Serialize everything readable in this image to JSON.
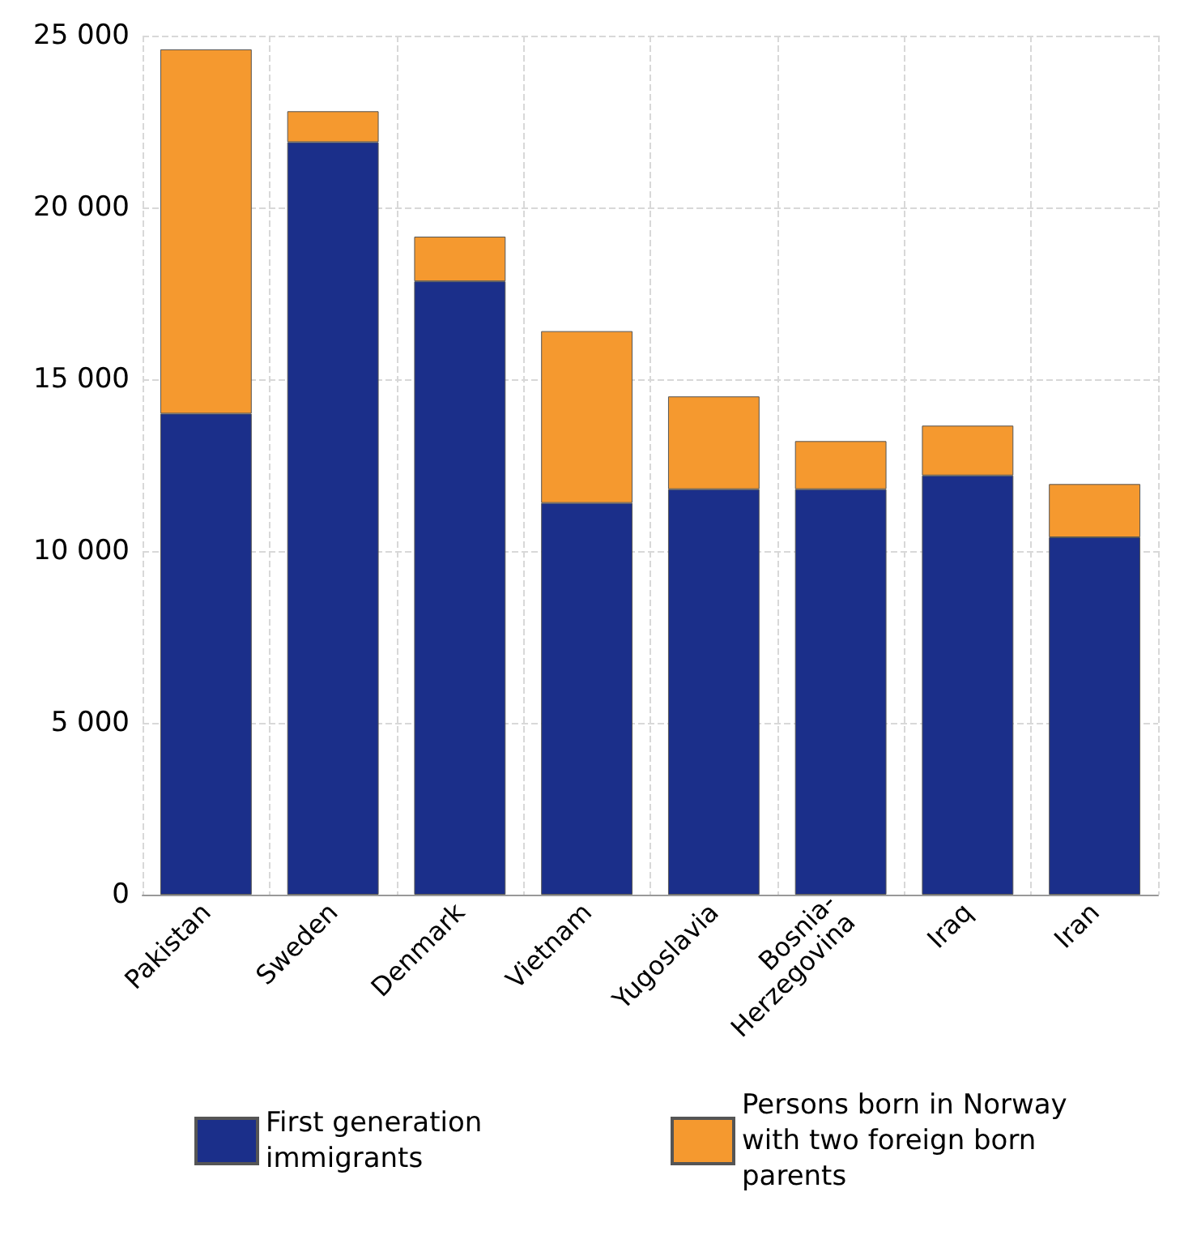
{
  "chart_data": {
    "type": "bar",
    "stacked": true,
    "categories": [
      "Pakistan",
      "Sweden",
      "Denmark",
      "Vietnam",
      "Yugoslavia",
      "Bosnia-Herzegovina",
      "Iraq",
      "Iran"
    ],
    "series": [
      {
        "name": "First generation immigrants",
        "color": "#1b2f8a",
        "values": [
          14000,
          21900,
          17850,
          11400,
          11800,
          11800,
          12200,
          10400
        ]
      },
      {
        "name": "Persons born in Norway with two foreign born parents",
        "color": "#f5992f",
        "values": [
          10600,
          900,
          1300,
          5000,
          2700,
          1400,
          1450,
          1550
        ]
      }
    ],
    "ylim": [
      0,
      25000
    ],
    "yticks": [
      {
        "value": 0,
        "label": "0"
      },
      {
        "value": 5000,
        "label": "5 000"
      },
      {
        "value": 10000,
        "label": "10 000"
      },
      {
        "value": 15000,
        "label": "15 000"
      },
      {
        "value": 20000,
        "label": "20 000"
      },
      {
        "value": 25000,
        "label": "25 000"
      }
    ],
    "grid": true,
    "legend": "bottom"
  }
}
